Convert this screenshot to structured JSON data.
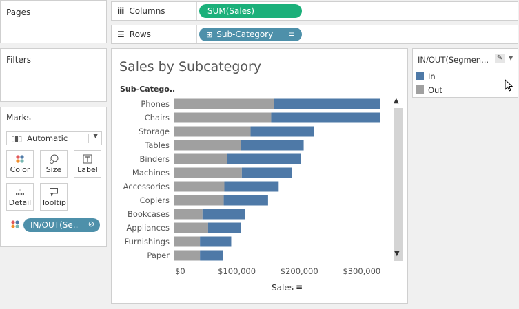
{
  "sidebar": {
    "pages_title": "Pages",
    "filters_title": "Filters",
    "marks_title": "Marks",
    "mark_type": "Automatic",
    "buttons": {
      "color": "Color",
      "size": "Size",
      "label": "Label",
      "detail": "Detail",
      "tooltip": "Tooltip"
    },
    "color_pill": "IN/OUT(Se..",
    "color_pill_dots": [
      "#e15759",
      "#4e79a7",
      "#f28e2b",
      "#76b7b2"
    ]
  },
  "shelves": {
    "columns_label": "Columns",
    "columns_pill": "SUM(Sales)",
    "rows_label": "Rows",
    "rows_pill": "Sub-Category"
  },
  "legend": {
    "title": "IN/OUT(Segmen...",
    "items": [
      {
        "label": "In",
        "color": "#4e79a7"
      },
      {
        "label": "Out",
        "color": "#a0a0a0"
      }
    ]
  },
  "chart_data": {
    "type": "bar",
    "orientation": "horizontal",
    "stacked": true,
    "title": "Sales by Subcategory",
    "row_header": "Sub-Catego..",
    "xlabel": "Sales",
    "xlim": [
      0,
      330000
    ],
    "ticks": [
      0,
      100000,
      200000,
      300000
    ],
    "tick_labels": [
      "$0",
      "$100,000",
      "$200,000",
      "$300,000"
    ],
    "categories": [
      "Phones",
      "Chairs",
      "Storage",
      "Tables",
      "Binders",
      "Machines",
      "Accessories",
      "Copiers",
      "Bookcases",
      "Appliances",
      "Furnishings",
      "Paper"
    ],
    "series": [
      {
        "name": "Out",
        "color": "#a0a0a0",
        "values": [
          160000,
          155000,
          122000,
          106000,
          84000,
          108000,
          80000,
          79000,
          45000,
          54000,
          41000,
          41000
        ]
      },
      {
        "name": "In",
        "color": "#4e79a7",
        "values": [
          170000,
          174000,
          101000,
          101000,
          119000,
          80000,
          87000,
          71000,
          68000,
          52000,
          50000,
          37000
        ]
      }
    ],
    "gridlines": false,
    "legend_position": "right"
  }
}
